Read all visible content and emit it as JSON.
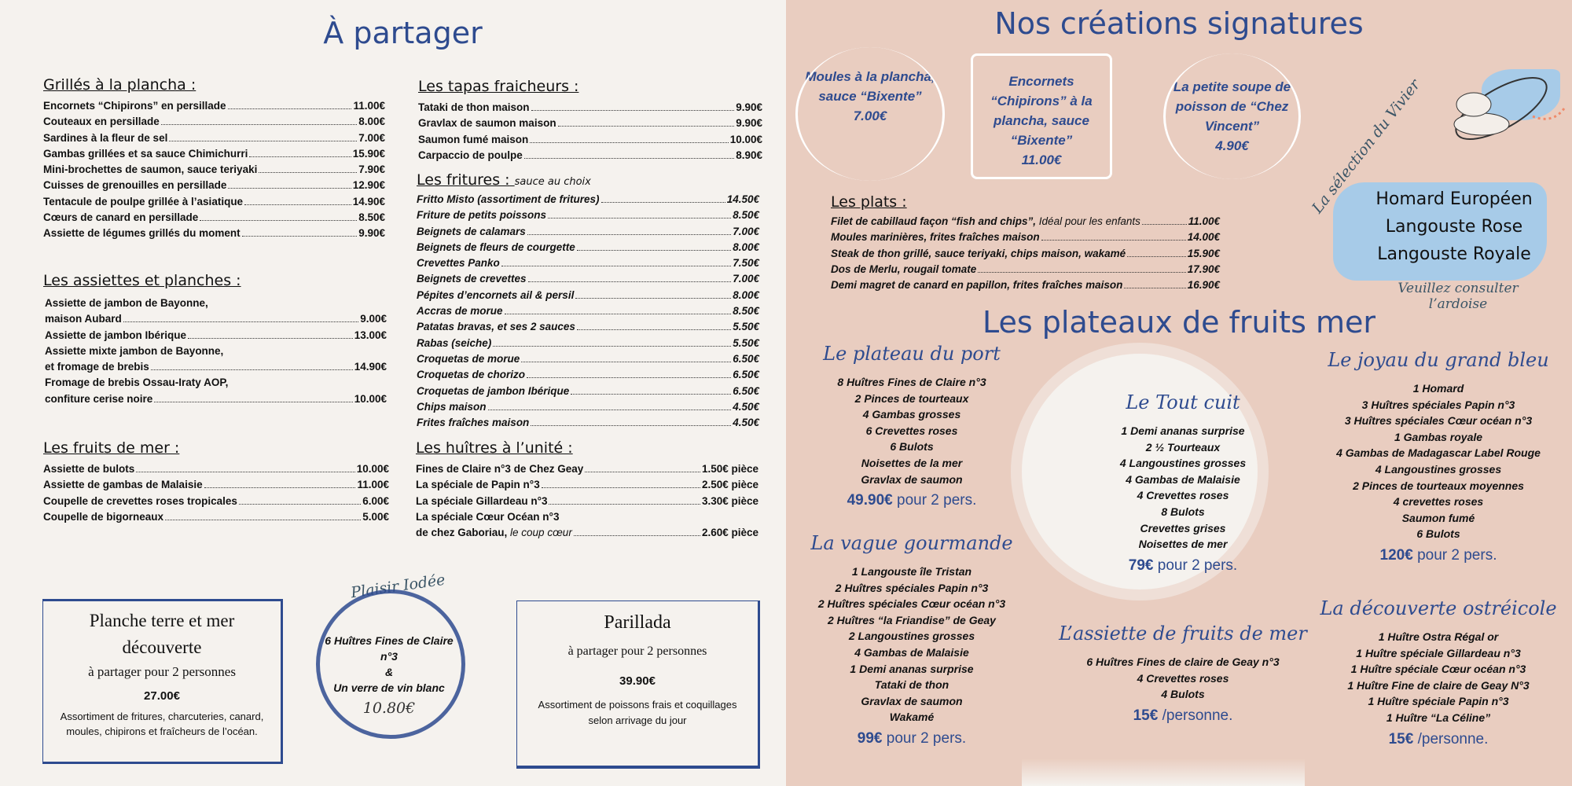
{
  "left": {
    "title": "À partager",
    "grilles": {
      "heading": "Grillés à la plancha :",
      "items": [
        [
          "Encornets “Chipirons” en persillade",
          "11.00€"
        ],
        [
          "Couteaux en persillade",
          "8.00€"
        ],
        [
          "Sardines à la fleur de sel",
          "7.00€"
        ],
        [
          "Gambas grillées et sa sauce Chimichurri",
          "15.90€"
        ],
        [
          "Mini-brochettes de saumon, sauce teriyaki",
          "7.90€"
        ],
        [
          "Cuisses de grenouilles en persillade",
          "12.90€"
        ],
        [
          "Tentacule de poulpe grillée à l’asiatique",
          "14.90€"
        ],
        [
          "Cœurs de canard en persillade",
          "8.50€"
        ],
        [
          "Assiette de légumes grillés du moment",
          "9.90€"
        ]
      ]
    },
    "assiettes": {
      "heading": "Les assiettes et planches :",
      "items": [
        [
          "Assiette de jambon de Bayonne,",
          ""
        ],
        [
          "maison Aubard",
          "9.00€"
        ],
        [
          "Assiette de jambon Ibérique",
          "13.00€"
        ],
        [
          "Assiette mixte jambon de Bayonne,",
          ""
        ],
        [
          " et fromage de brebis",
          "14.90€"
        ],
        [
          "Fromage de brebis Ossau-Iraty AOP,",
          ""
        ],
        [
          "confiture cerise noire",
          "10.00€"
        ]
      ]
    },
    "fruits": {
      "heading": "Les fruits de mer :",
      "items": [
        [
          "Assiette de bulots",
          "10.00€"
        ],
        [
          "Assiette de gambas de Malaisie",
          "11.00€"
        ],
        [
          "Coupelle de crevettes roses tropicales",
          "6.00€"
        ],
        [
          "Coupelle de bigorneaux",
          "5.00€"
        ]
      ]
    },
    "tapas": {
      "heading": "Les tapas fraicheurs :",
      "items": [
        [
          "Tataki de thon maison",
          "9.90€"
        ],
        [
          "Gravlax de saumon maison",
          "9.90€"
        ],
        [
          "Saumon fumé maison",
          "10.00€"
        ],
        [
          "Carpaccio de poulpe",
          "8.90€"
        ]
      ]
    },
    "fritures": {
      "heading": "Les fritures :",
      "note": "sauce au choix",
      "items": [
        [
          "Fritto Misto (assortiment de fritures)",
          "14.50€"
        ],
        [
          "Friture de petits poissons",
          "8.50€"
        ],
        [
          "Beignets de calamars",
          "7.00€"
        ],
        [
          "Beignets de fleurs de courgette",
          "8.00€"
        ],
        [
          "Crevettes Panko",
          "7.50€"
        ],
        [
          "Beignets de crevettes",
          "7.00€"
        ],
        [
          "Pépites d’encornets ail & persil",
          "8.00€"
        ],
        [
          "Accras de morue",
          "8.50€"
        ],
        [
          "Patatas bravas, et ses 2 sauces",
          "5.50€"
        ],
        [
          "Rabas (seiche)",
          "5.50€"
        ],
        [
          "Croquetas de morue",
          "6.50€"
        ],
        [
          "Croquetas de chorizo",
          "6.50€"
        ],
        [
          "Croquetas de jambon Ibérique",
          "6.50€"
        ],
        [
          "Chips maison",
          "4.50€"
        ],
        [
          "Frites fraîches maison",
          "4.50€"
        ]
      ]
    },
    "huitres": {
      "heading": "Les huîtres à l’unité :",
      "items": [
        [
          "Fines de Claire n°3 de Chez Geay",
          "1.50€ pièce"
        ],
        [
          "La spéciale de Papin n°3",
          "2.50€ pièce"
        ],
        [
          "La spéciale Gillardeau n°3",
          "3.30€ pièce"
        ],
        [
          "La spéciale Cœur Océan n°3",
          ""
        ],
        [
          "de chez Gaboriau, ",
          "2.60€ pièce",
          "le coup cœur"
        ]
      ]
    },
    "terre_mer": {
      "title": "Planche terre et mer découverte",
      "subtitle": "à partager pour 2 personnes",
      "price": "27.00€",
      "desc": "Assortiment de fritures, charcuteries, canard, moules, chipirons et fraîcheurs de l’océan."
    },
    "plaisir": {
      "title": "Plaisir Iodée",
      "line1": "6 Huîtres Fines de Claire n°3",
      "amp": "&",
      "line2": "Un verre de vin blanc",
      "price": "10.80€"
    },
    "parillada": {
      "title": "Parillada",
      "subtitle": "à partager pour 2 personnes",
      "price": "39.90€",
      "desc": "Assortiment de poissons frais et coquillages selon arrivage du jour"
    }
  },
  "right": {
    "title": "Nos créations signatures",
    "signatures": [
      {
        "name": "Moules à la plancha, sauce “Bixente”",
        "price": "7.00€"
      },
      {
        "name": "Encornets “Chipirons” à la plancha, sauce “Bixente”",
        "price": "11.00€"
      },
      {
        "name": "La petite soupe de poisson de “Chez Vincent”",
        "price": "4.90€"
      }
    ],
    "vivier": {
      "title": "La sélection du Vivier",
      "items": [
        "Homard Européen",
        "Langouste Rose",
        "Langouste Royale"
      ],
      "note": "Veuillez consulter l’ardoise"
    },
    "plats": {
      "heading": "Les plats :",
      "items": [
        [
          "Filet de cabillaud façon “fish and chips”, ",
          "11.00€",
          "Idéal pour les enfants"
        ],
        [
          "Moules marinières, frites fraîches maison",
          "14.00€"
        ],
        [
          "Steak de thon grillé, sauce teriyaki, chips maison, wakamé",
          "15.90€"
        ],
        [
          "Dos de Merlu, rougail tomate",
          "17.90€"
        ],
        [
          "Demi magret de canard en papillon, frites fraîches maison",
          "16.90€"
        ]
      ]
    },
    "plateaux_title": "Les plateaux de fruits mer",
    "plateaux": {
      "port": {
        "title": "Le plateau du port",
        "items": [
          "8 Huîtres Fines de Claire n°3",
          "2 Pinces de tourteaux",
          "4 Gambas grosses",
          "6 Crevettes roses",
          "6 Bulots",
          "Noisettes de la mer",
          "Gravlax de saumon"
        ],
        "price": "49.90€",
        "per": "pour 2 pers."
      },
      "vague": {
        "title": "La vague gourmande",
        "items": [
          "1 Langouste île Tristan",
          "2 Huîtres spéciales Papin n°3",
          "2 Huîtres spéciales Cœur océan n°3",
          "2 Huîtres “la Friandise” de Geay",
          "2 Langoustines  grosses",
          "4 Gambas de Malaisie",
          "1 Demi ananas surprise",
          "Tataki de thon",
          "Gravlax de saumon",
          "Wakamé"
        ],
        "price": "99€",
        "per": "pour 2 pers."
      },
      "toutcuit": {
        "title": "Le Tout cuit",
        "items": [
          "1 Demi ananas surprise",
          "2 ½ Tourteaux",
          "4 Langoustines grosses",
          "4 Gambas de Malaisie",
          "4 Crevettes roses",
          "8 Bulots",
          "Crevettes grises",
          "Noisettes de mer"
        ],
        "price": "79€",
        "per": "pour 2 pers."
      },
      "assiette": {
        "title": "L’assiette de fruits de mer",
        "items": [
          "6 Huîtres Fines de claire de Geay n°3",
          "4 Crevettes roses",
          "4 Bulots"
        ],
        "price": "15€",
        "per": "/personne."
      },
      "joyau": {
        "title": "Le joyau du grand bleu",
        "items": [
          "1 Homard",
          "3 Huîtres spéciales Papin n°3",
          "3 Huîtres spéciales Cœur océan n°3",
          "1 Gambas royale",
          "4 Gambas de Madagascar Label Rouge",
          "4 Langoustines  grosses",
          "2 Pinces de tourteaux moyennes",
          "4 crevettes roses",
          "Saumon fumé",
          "6 Bulots"
        ],
        "price": "120€",
        "per": "pour 2 pers."
      },
      "decouverte": {
        "title": "La découverte ostréicole",
        "items": [
          "1 Huître Ostra Régal or",
          "1 Huître spéciale Gillardeau n°3",
          "1 Huître spéciale Cœur océan n°3",
          "1 Huître Fine de claire de Geay N°3",
          "1 Huître spéciale Papin n°3",
          "1 Huître “La Céline”"
        ],
        "price": "15€",
        "per": "/personne."
      }
    }
  },
  "colors": {
    "accent": "#2e4b8f",
    "left_bg": "#f5f2ee",
    "right_bg": "#e9cdc0",
    "highlight": "#a7cbe8"
  }
}
